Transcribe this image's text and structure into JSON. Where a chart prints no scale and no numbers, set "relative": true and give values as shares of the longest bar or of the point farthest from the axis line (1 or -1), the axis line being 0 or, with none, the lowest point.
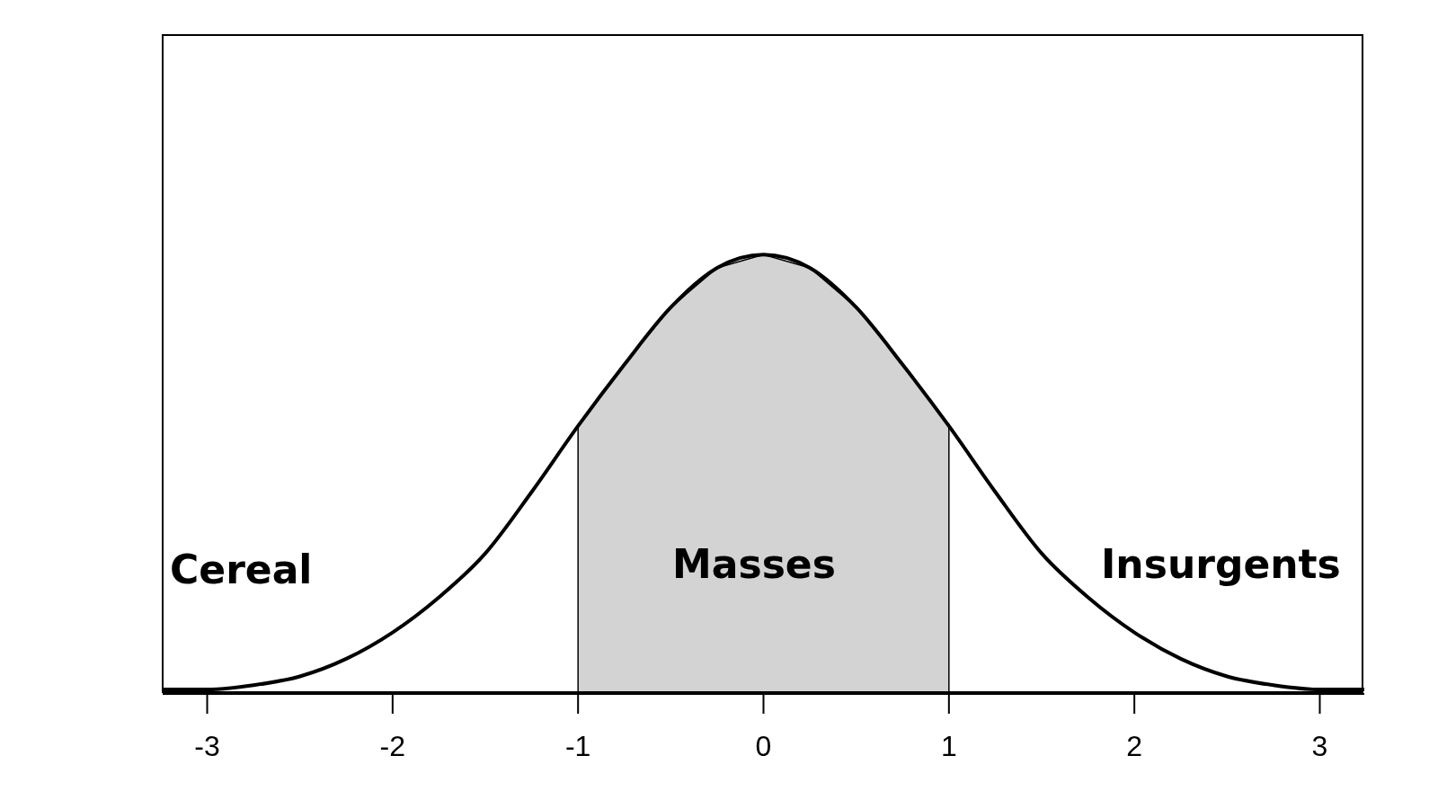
{
  "chart_data": {
    "type": "line",
    "relative": true,
    "xlim": [
      -3.24,
      3.24
    ],
    "xticks": [
      -3,
      -2,
      -1,
      0,
      1,
      2,
      3
    ],
    "marker": "none",
    "annotations": [
      "Cereal",
      "Masses",
      "Insurgents"
    ],
    "series": [
      {
        "type": "area",
        "color": "#d3d3d3",
        "x": [
          -1,
          -1,
          -0.75,
          -0.5,
          -0.25,
          0,
          0.25,
          0.5,
          0.75,
          1,
          1
        ],
        "values": [
          0,
          0.61,
          0.75,
          0.88,
          0.97,
          1,
          0.97,
          0.88,
          0.75,
          0.61,
          0
        ]
      },
      {
        "color": "#000000",
        "x": [
          -3.24,
          -3,
          -2.75,
          -2.5,
          -2.25,
          -2,
          -1.75,
          -1.5,
          -1.25,
          -1,
          -0.75,
          -0.5,
          -0.25,
          0,
          0.25,
          0.5,
          0.75,
          1,
          1.25,
          1.5,
          1.75,
          2,
          2.25,
          2.5,
          2.75,
          3,
          3.24
        ],
        "values": [
          0.01,
          0.01,
          0.02,
          0.04,
          0.08,
          0.14,
          0.22,
          0.32,
          0.46,
          0.61,
          0.75,
          0.88,
          0.97,
          1,
          0.97,
          0.88,
          0.75,
          0.61,
          0.46,
          0.32,
          0.22,
          0.14,
          0.08,
          0.04,
          0.02,
          0.01,
          0.01
        ]
      }
    ]
  }
}
